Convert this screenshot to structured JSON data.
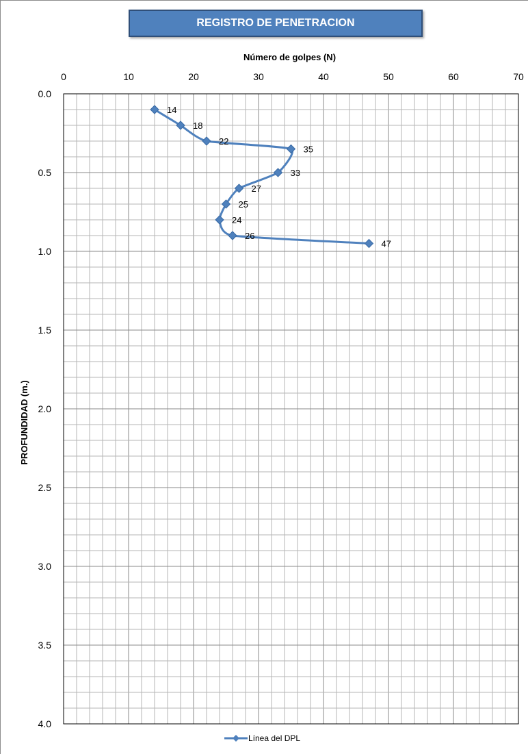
{
  "chart_data": {
    "type": "line",
    "title": "REGISTRO DE PENETRACION",
    "xlabel": "Número de golpes (N)",
    "ylabel": "PROFUNDIDAD (m.)",
    "xlim": [
      0,
      70
    ],
    "ylim": [
      0,
      4
    ],
    "y_inverted": true,
    "x_axis_position": "top",
    "x_ticks": [
      "0",
      "10",
      "20",
      "30",
      "40",
      "50",
      "60",
      "70"
    ],
    "y_ticks": [
      "0.0",
      "0.5",
      "1.0",
      "1.5",
      "2.0",
      "2.5",
      "3.0",
      "3.5",
      "4.0"
    ],
    "grid": true,
    "legend_position": "bottom",
    "series": [
      {
        "name": "Línea del DPL",
        "color": "#4f81bd",
        "marker": "diamond",
        "smooth": true,
        "points": [
          {
            "x": 14,
            "y": 0.1,
            "label": "14"
          },
          {
            "x": 18,
            "y": 0.2,
            "label": "18"
          },
          {
            "x": 22,
            "y": 0.3,
            "label": "22"
          },
          {
            "x": 35,
            "y": 0.35,
            "label": "35"
          },
          {
            "x": 33,
            "y": 0.5,
            "label": "33"
          },
          {
            "x": 27,
            "y": 0.6,
            "label": "27"
          },
          {
            "x": 25,
            "y": 0.7,
            "label": "25"
          },
          {
            "x": 24,
            "y": 0.8,
            "label": "24"
          },
          {
            "x": 26,
            "y": 0.9,
            "label": "26"
          },
          {
            "x": 47,
            "y": 0.95,
            "label": "47"
          }
        ]
      }
    ]
  }
}
